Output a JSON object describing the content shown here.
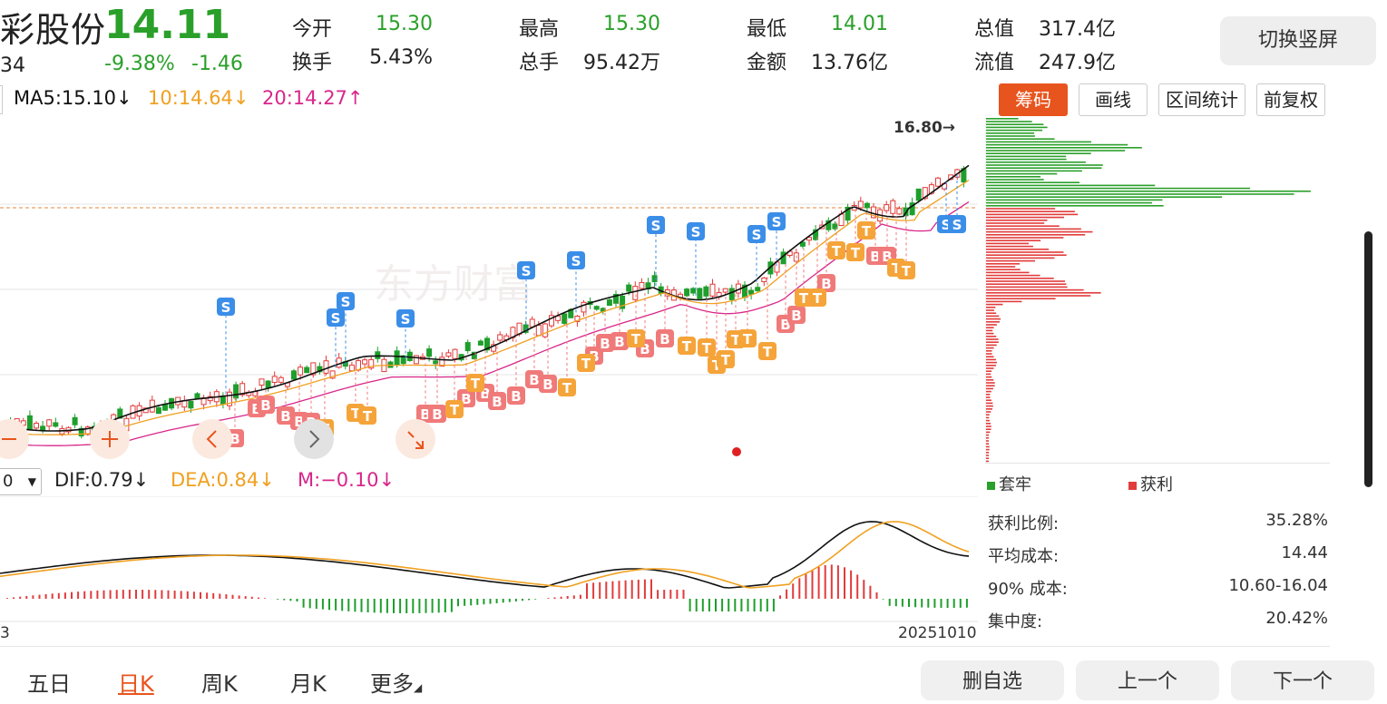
{
  "header": {
    "stock_name": "彩股份",
    "stock_code": "34",
    "price": "14.11",
    "change_pct": "-9.38%",
    "change_amt": "-1.46",
    "stats": [
      {
        "label": "今开",
        "value": "15.30",
        "color": "green"
      },
      {
        "label": "最高",
        "value": "15.30",
        "color": "green"
      },
      {
        "label": "最低",
        "value": "14.01",
        "color": "green"
      },
      {
        "label": "总值",
        "value": "317.4亿",
        "color": "dark"
      },
      {
        "label": "换手",
        "value": "5.43%",
        "color": "dark"
      },
      {
        "label": "总手",
        "value": "95.42万",
        "color": "dark"
      },
      {
        "label": "金额",
        "value": "13.76亿",
        "color": "dark"
      },
      {
        "label": "流值",
        "value": "247.9亿",
        "color": "dark"
      }
    ],
    "switch_button": "切换竖屏"
  },
  "ma_indicators": {
    "ma5": "MA5:15.10",
    "ma10": "10:14.64",
    "ma20": "20:14.27",
    "ma5_arrow": "↓",
    "ma10_arrow": "↓",
    "ma20_arrow": "↑"
  },
  "toolbar": {
    "chips": "筹码",
    "draw_line": "画线",
    "range_stats": "区间统计",
    "adjust": "前复权"
  },
  "chart": {
    "high_label": "16.80→",
    "watermark": "东方财富"
  },
  "macd": {
    "period_value": "0",
    "dif": "DIF:0.79",
    "dea": "DEA:0.84",
    "m": "M:−0.10",
    "dif_arrow": "↓",
    "dea_arrow": "↓",
    "m_arrow": "↓",
    "start_date": "3",
    "end_date": "20251010"
  },
  "chip_panel": {
    "legend_trapped": "套牢",
    "legend_profit": "获利",
    "stats": [
      {
        "label": "获利比例:",
        "value": "35.28%"
      },
      {
        "label": "平均成本:",
        "value": "14.44"
      },
      {
        "label": "90% 成本:",
        "value": "10.60-16.04"
      },
      {
        "label": "集中度:",
        "value": "20.42%"
      }
    ]
  },
  "bottom": {
    "tabs": [
      {
        "label": "五日",
        "active": false
      },
      {
        "label": "日K",
        "active": true
      },
      {
        "label": "周K",
        "active": false
      },
      {
        "label": "月K",
        "active": false
      },
      {
        "label": "更多",
        "active": false
      }
    ],
    "buttons": {
      "remove": "删自选",
      "prev": "上一个",
      "next": "下一个"
    }
  },
  "colors": {
    "up": "#e23b3b",
    "down": "#1e9e2c",
    "ma5": "#111111",
    "ma10": "#f0a020",
    "ma20": "#d8268a",
    "accent": "#e8541e"
  }
}
